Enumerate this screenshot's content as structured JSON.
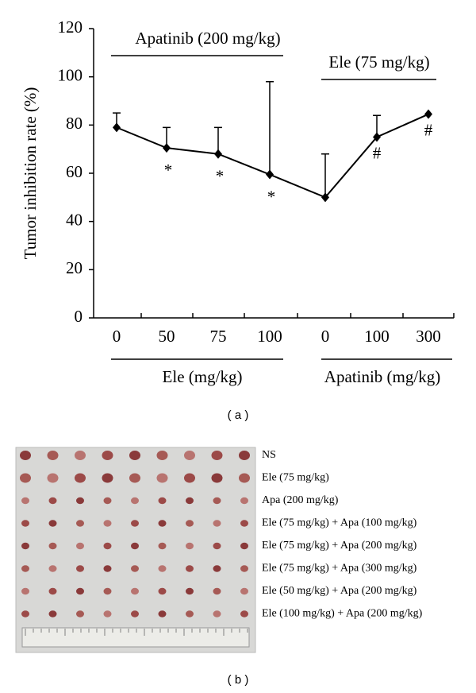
{
  "chart_data": {
    "type": "line",
    "y_label": "Tumor inhibition rate (%)",
    "categories": [
      "0",
      "50",
      "75",
      "100",
      "0",
      "100",
      "300"
    ],
    "values": [
      79,
      70.5,
      68,
      59.5,
      50,
      75,
      84.5
    ],
    "errors": [
      6,
      8.5,
      11,
      38.5,
      18,
      9,
      null
    ],
    "color": "#000000",
    "ylim": [
      0,
      120
    ],
    "yticks": [
      0,
      20,
      40,
      60,
      80,
      100,
      120
    ],
    "groups_top": [
      "Apatinib (200 mg/kg)",
      "Ele (75 mg/kg)"
    ],
    "groups_bottom": [
      "Ele (mg/kg)",
      "Apatinib (mg/kg)"
    ],
    "annotations": [
      {
        "text": "*",
        "category": 1
      },
      {
        "text": "*",
        "category": 2
      },
      {
        "text": "*",
        "category": 3
      },
      {
        "text": "#",
        "category": 5
      },
      {
        "text": "#",
        "category": 6
      }
    ]
  },
  "captions": [
    "( a )",
    "( b )"
  ],
  "photo": {
    "labels": [
      "NS",
      "Ele (75 mg/kg)",
      "Apa (200 mg/kg)",
      "Ele (75 mg/kg) + Apa (100 mg/kg)",
      "Ele (75 mg/kg) + Apa (200 mg/kg)",
      "Ele (75 mg/kg) + Apa (300 mg/kg)",
      "Ele (50 mg/kg) + Apa (200 mg/kg)",
      "Ele (100 mg/kg) + Apa (200 mg/kg)"
    ]
  }
}
